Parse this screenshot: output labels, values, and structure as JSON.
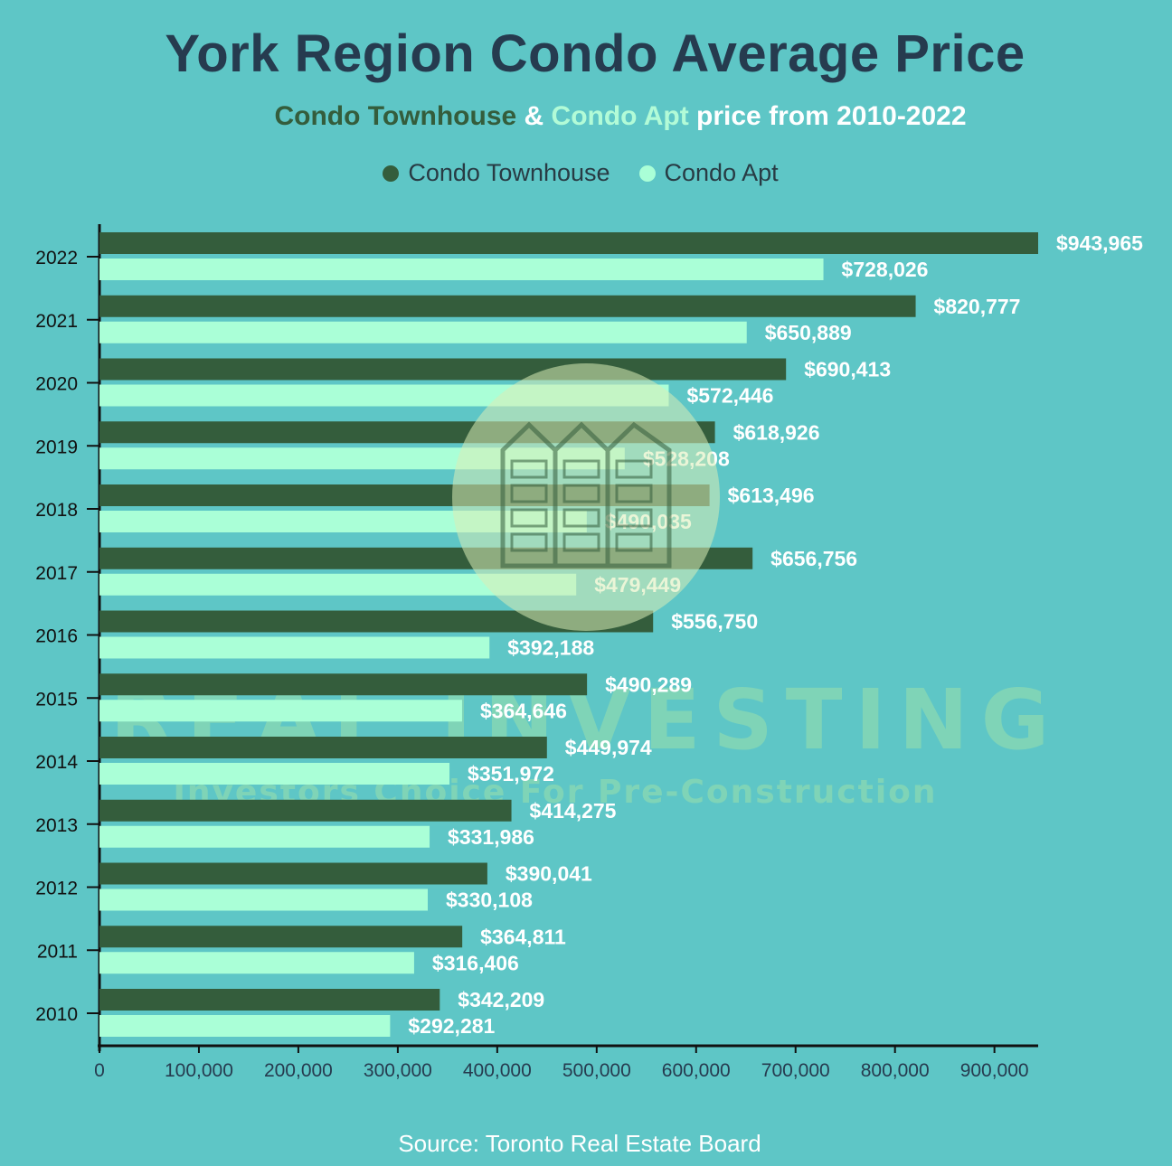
{
  "title": "York Region Condo Average Price",
  "subtitle": {
    "part1": "Condo Townhouse",
    "part2": " & ",
    "part3": "Condo Apt",
    "part4": " price from 2010-2022"
  },
  "legend": {
    "townhouse_label": "Condo Townhouse",
    "apt_label": "Condo Apt"
  },
  "watermark": {
    "brand": "REAL INVESTING",
    "tagline": "Investors Choice For Pre-Construction"
  },
  "source": "Source: Toronto Real Estate Board",
  "colors": {
    "background": "#5ec6c6",
    "townhouse": "#345d3c",
    "apt": "#aaffd7",
    "title": "#263b4f",
    "label": "#ffffff"
  },
  "chart_data": {
    "type": "bar",
    "orientation": "horizontal",
    "categories": [
      "2022",
      "2021",
      "2020",
      "2019",
      "2018",
      "2017",
      "2016",
      "2015",
      "2014",
      "2013",
      "2012",
      "2011",
      "2010"
    ],
    "series": [
      {
        "name": "Condo Townhouse",
        "values": [
          943965,
          820777,
          690413,
          618926,
          613496,
          656756,
          556750,
          490289,
          449974,
          414275,
          390041,
          364811,
          342209
        ],
        "labels": [
          "$943,965",
          "$820,777",
          "$690,413",
          "$618,926",
          "$613,496",
          "$656,756",
          "$556,750",
          "$490,289",
          "$449,974",
          "$414,275",
          "$390,041",
          "$364,811",
          "$342,209"
        ]
      },
      {
        "name": "Condo Apt",
        "values": [
          728026,
          650889,
          572446,
          528208,
          490035,
          479449,
          392188,
          364646,
          351972,
          331986,
          330108,
          316406,
          292281
        ],
        "labels": [
          "$728,026",
          "$650,889",
          "$572,446",
          "$528,208",
          "$490,035",
          "$479,449",
          "$392,188",
          "$364,646",
          "$351,972",
          "$331,986",
          "$330,108",
          "$316,406",
          "$292,281"
        ]
      }
    ],
    "xlim": [
      0,
      950000
    ],
    "xticks": [
      0,
      100000,
      200000,
      300000,
      400000,
      500000,
      600000,
      700000,
      800000,
      900000
    ],
    "xtick_labels": [
      "0",
      "100,000",
      "200,000",
      "300,000",
      "400,000",
      "500,000",
      "600,000",
      "700,000",
      "800,000",
      "900,000"
    ],
    "grid": false,
    "legend_position": "top-center"
  }
}
